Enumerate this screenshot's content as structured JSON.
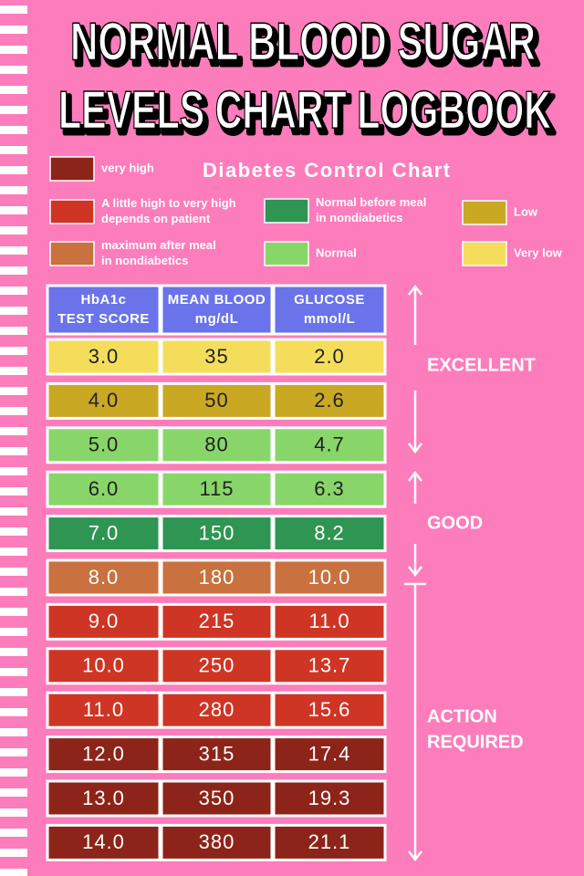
{
  "header": {
    "title": [
      "NORMAL BLOOD SUGAR",
      "LEVELS CHART LOGBOOK"
    ],
    "subtitle": "Diabetes Control Chart"
  },
  "legend": [
    {
      "lines": [
        "very high"
      ],
      "color": "#8c2419"
    },
    {
      "lines": [
        "A little high to very high",
        "depends on patient"
      ],
      "color": "#cf3524"
    },
    {
      "lines": [
        "maximum after meal",
        "in nondiabetics"
      ],
      "color": "#c9713f"
    },
    {
      "lines": [
        "Normal before meal",
        "in nondiabetics"
      ],
      "color": "#2e9552"
    },
    {
      "lines": [
        "Normal"
      ],
      "color": "#88d66a"
    },
    {
      "lines": [
        "Low"
      ],
      "color": "#c9a824"
    },
    {
      "lines": [
        "Very low"
      ],
      "color": "#f5dd5c"
    }
  ],
  "table": {
    "header": [
      [
        "HbA1c",
        "TEST SCORE"
      ],
      [
        "MEAN BLOOD",
        "mg/dL"
      ],
      [
        "GLUCOSE",
        "mmol/L"
      ]
    ],
    "header_color": "#6a73ea",
    "rows": [
      {
        "cells": [
          "3.0",
          "35",
          "2.0"
        ],
        "color": "#f5dd5c",
        "text_color": "#222222"
      },
      {
        "cells": [
          "4.0",
          "50",
          "2.6"
        ],
        "color": "#c9a824",
        "text_color": "#222222"
      },
      {
        "cells": [
          "5.0",
          "80",
          "4.7"
        ],
        "color": "#88d66a",
        "text_color": "#222222"
      },
      {
        "cells": [
          "6.0",
          "115",
          "6.3"
        ],
        "color": "#88d66a",
        "text_color": "#222222"
      },
      {
        "cells": [
          "7.0",
          "150",
          "8.2"
        ],
        "color": "#2e9552",
        "text_color": "#ffffff"
      },
      {
        "cells": [
          "8.0",
          "180",
          "10.0"
        ],
        "color": "#c9713f",
        "text_color": "#ffffff"
      },
      {
        "cells": [
          "9.0",
          "215",
          "11.0"
        ],
        "color": "#cf3524",
        "text_color": "#ffffff"
      },
      {
        "cells": [
          "10.0",
          "250",
          "13.7"
        ],
        "color": "#cf3524",
        "text_color": "#ffffff"
      },
      {
        "cells": [
          "11.0",
          "280",
          "15.6"
        ],
        "color": "#cf3524",
        "text_color": "#ffffff"
      },
      {
        "cells": [
          "12.0",
          "315",
          "17.4"
        ],
        "color": "#8c2419",
        "text_color": "#ffffff"
      },
      {
        "cells": [
          "13.0",
          "350",
          "19.3"
        ],
        "color": "#8c2419",
        "text_color": "#ffffff"
      },
      {
        "cells": [
          "14.0",
          "380",
          "21.1"
        ],
        "color": "#8c2419",
        "text_color": "#ffffff"
      }
    ]
  },
  "ranges": [
    [
      "EXCELLENT"
    ],
    [
      "GOOD"
    ],
    [
      "ACTION",
      "REQUIRED"
    ]
  ]
}
